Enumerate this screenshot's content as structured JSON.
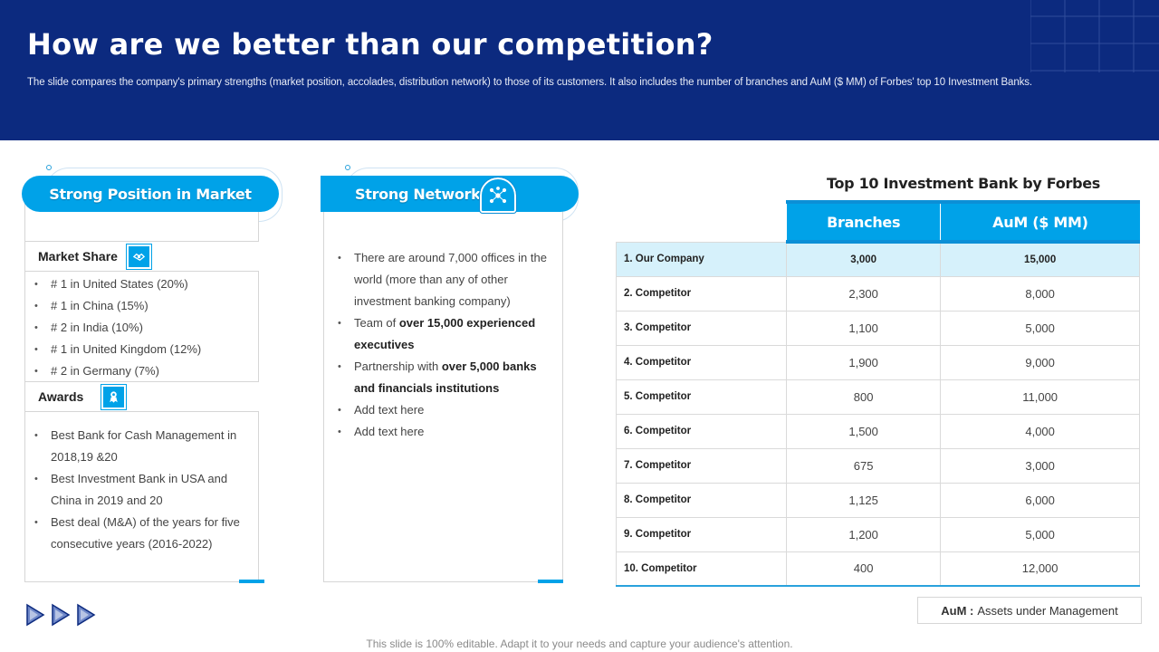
{
  "header": {
    "title": "How are we better than our competition?",
    "subtitle": "The slide compares the company's primary strengths (market position, accolades, distribution network) to those of its customers. It also includes the number of branches and AuM ($ MM)  of Forbes' top 10 Investment Banks."
  },
  "left_panel": {
    "title": "Strong Position in Market",
    "market_share": {
      "label": "Market Share",
      "icon": "handshake-icon",
      "items": [
        "# 1 in United States (20%)",
        "# 1 in China (15%)",
        "# 2 in India (10%)",
        "# 1 in United Kingdom (12%)",
        "# 2 in Germany (7%)"
      ]
    },
    "awards": {
      "label": "Awards",
      "icon": "award-icon",
      "items": [
        "Best Bank for Cash Management  in 2018,19 &20",
        "Best Investment  Bank in USA and China in 2019 and 20",
        "Best deal (M&A) of the years for five consecutive  years (2016-2022)"
      ]
    }
  },
  "middle_panel": {
    "title": "Strong Network",
    "icon": "network-icon",
    "items": [
      {
        "pre": "There are around 7,000 offices in the world (more than any of other investment  banking company)",
        "bold": "",
        "post": ""
      },
      {
        "pre": "Team of ",
        "bold": "over 15,000 experienced executives",
        "post": ""
      },
      {
        "pre": "Partnership with ",
        "bold": "over 5,000 banks and financials institutions",
        "post": ""
      },
      {
        "pre": "Add text here",
        "bold": "",
        "post": ""
      },
      {
        "pre": "Add text here",
        "bold": "",
        "post": ""
      }
    ]
  },
  "table": {
    "title": "Top 10 Investment Bank by Forbes",
    "headers": [
      "Branches",
      "AuM ($ MM)"
    ],
    "rows": [
      {
        "name": "1. Our Company",
        "branches": "3,000",
        "aum": "15,000"
      },
      {
        "name": "2. Competitor",
        "branches": "2,300",
        "aum": "8,000"
      },
      {
        "name": "3. Competitor",
        "branches": "1,100",
        "aum": "5,000"
      },
      {
        "name": "4. Competitor",
        "branches": "1,900",
        "aum": "9,000"
      },
      {
        "name": "5. Competitor",
        "branches": "800",
        "aum": "11,000"
      },
      {
        "name": "6. Competitor",
        "branches": "1,500",
        "aum": "4,000"
      },
      {
        "name": "7. Competitor",
        "branches": "675",
        "aum": "3,000"
      },
      {
        "name": "8. Competitor",
        "branches": "1,125",
        "aum": "6,000"
      },
      {
        "name": "9. Competitor",
        "branches": "1,200",
        "aum": "5,000"
      },
      {
        "name": "10. Competitor",
        "branches": "400",
        "aum": "12,000"
      }
    ]
  },
  "legend": {
    "term": "AuM :",
    "definition": "Assets under Management"
  },
  "footer": "This slide is 100% editable. Adapt it to your needs and capture your audience's attention.",
  "colors": {
    "header_bg": "#0c2a7f",
    "accent": "#00a2e8",
    "highlight_row": "#d6f1fb"
  }
}
